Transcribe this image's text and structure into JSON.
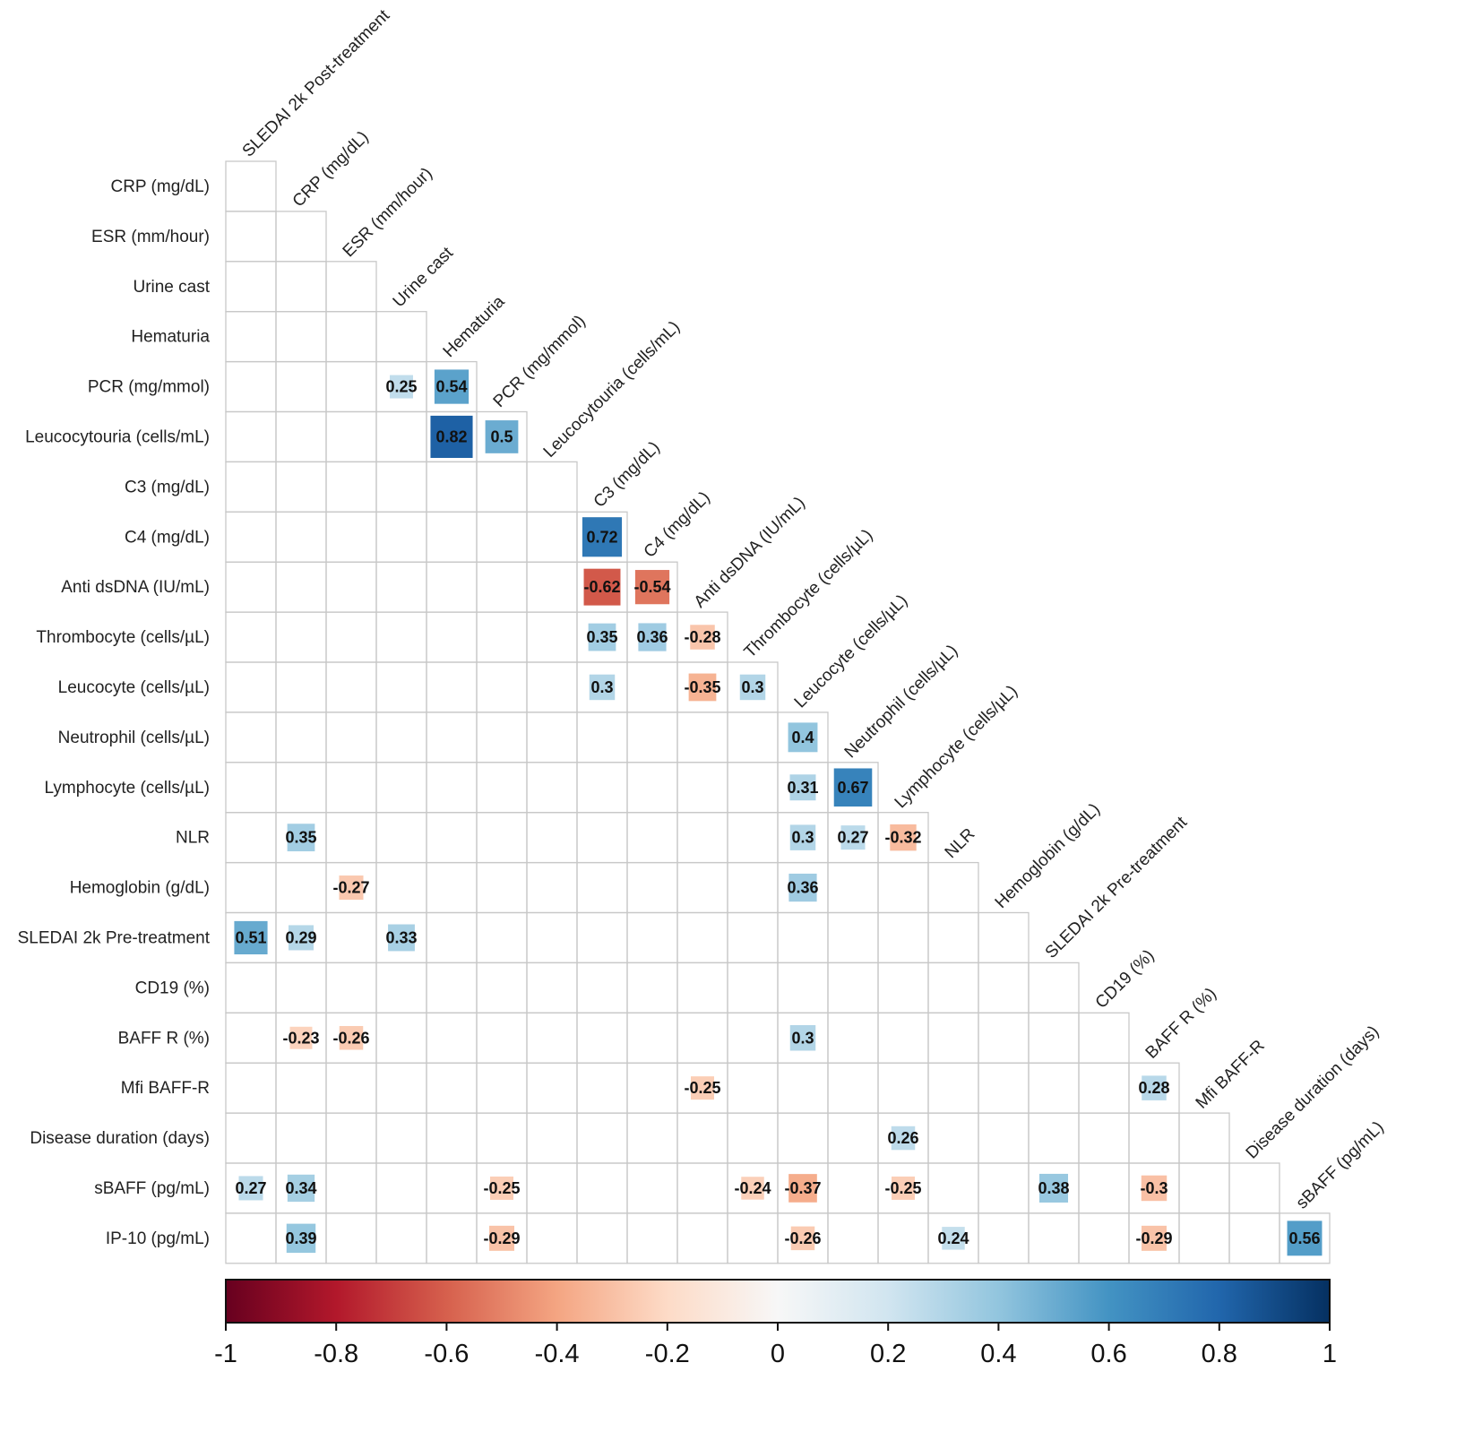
{
  "chart_data": {
    "type": "heatmap",
    "title": "",
    "xlabel": "",
    "ylabel": "",
    "columns": [
      "SLEDAI 2k Post-treatment",
      "CRP (mg/dL)",
      "ESR (mm/hour)",
      "Urine cast",
      "Hematuria",
      "PCR (mg/mmol)",
      "Leucocytouria (cells/mL)",
      "C3  (mg/dL)",
      "C4 (mg/dL)",
      "Anti dsDNA (IU/mL)",
      "Thrombocyte (cells/µL)",
      "Leucocyte (cells/µL)",
      "Neutrophil (cells/µL)",
      "Lymphocyte (cells/µL)",
      "NLR",
      "Hemoglobin (g/dL)",
      "SLEDAI 2k Pre-treatment",
      "CD19 (%)",
      "BAFF R (%)",
      "Mfi BAFF-R",
      "Disease duration (days)",
      "sBAFF (pg/mL)"
    ],
    "rows": [
      "CRP (mg/dL)",
      "ESR (mm/hour)",
      "Urine cast",
      "Hematuria",
      "PCR (mg/mmol)",
      "Leucocytouria (cells/mL)",
      "C3  (mg/dL)",
      "C4 (mg/dL)",
      "Anti dsDNA (IU/mL)",
      "Thrombocyte (cells/µL)",
      "Leucocyte (cells/µL)",
      "Neutrophil (cells/µL)",
      "Lymphocyte (cells/µL)",
      "NLR",
      "Hemoglobin (g/dL)",
      "SLEDAI 2k Pre-treatment",
      "CD19 (%)",
      "BAFF R (%)",
      "Mfi BAFF-R",
      "Disease duration (days)",
      "sBAFF (pg/mL)",
      "IP-10 (pg/mL)"
    ],
    "cells": [
      {
        "row": 4,
        "col": 3,
        "value": 0.25,
        "label": "0.25"
      },
      {
        "row": 4,
        "col": 4,
        "value": 0.54,
        "label": "0.54"
      },
      {
        "row": 5,
        "col": 4,
        "value": 0.82,
        "label": "0.82"
      },
      {
        "row": 5,
        "col": 5,
        "value": 0.5,
        "label": "0.5"
      },
      {
        "row": 7,
        "col": 7,
        "value": 0.72,
        "label": "0.72"
      },
      {
        "row": 8,
        "col": 7,
        "value": -0.62,
        "label": "-0.62"
      },
      {
        "row": 8,
        "col": 8,
        "value": -0.54,
        "label": "-0.54"
      },
      {
        "row": 9,
        "col": 7,
        "value": 0.35,
        "label": "0.35"
      },
      {
        "row": 9,
        "col": 8,
        "value": 0.36,
        "label": "0.36"
      },
      {
        "row": 9,
        "col": 9,
        "value": -0.28,
        "label": "-0.28"
      },
      {
        "row": 10,
        "col": 7,
        "value": 0.3,
        "label": "0.3"
      },
      {
        "row": 10,
        "col": 9,
        "value": -0.35,
        "label": "-0.35"
      },
      {
        "row": 10,
        "col": 10,
        "value": 0.3,
        "label": "0.3"
      },
      {
        "row": 11,
        "col": 11,
        "value": 0.4,
        "label": "0.4"
      },
      {
        "row": 12,
        "col": 11,
        "value": 0.31,
        "label": "0.31"
      },
      {
        "row": 12,
        "col": 12,
        "value": 0.67,
        "label": "0.67"
      },
      {
        "row": 13,
        "col": 1,
        "value": 0.35,
        "label": "0.35"
      },
      {
        "row": 13,
        "col": 11,
        "value": 0.3,
        "label": "0.3"
      },
      {
        "row": 13,
        "col": 12,
        "value": 0.27,
        "label": "0.27"
      },
      {
        "row": 13,
        "col": 13,
        "value": -0.32,
        "label": "-0.32"
      },
      {
        "row": 14,
        "col": 2,
        "value": -0.27,
        "label": "-0.27"
      },
      {
        "row": 14,
        "col": 11,
        "value": 0.36,
        "label": "0.36"
      },
      {
        "row": 15,
        "col": 0,
        "value": 0.51,
        "label": "0.51"
      },
      {
        "row": 15,
        "col": 1,
        "value": 0.29,
        "label": "0.29"
      },
      {
        "row": 15,
        "col": 3,
        "value": 0.33,
        "label": "0.33"
      },
      {
        "row": 17,
        "col": 1,
        "value": -0.23,
        "label": "-0.23"
      },
      {
        "row": 17,
        "col": 2,
        "value": -0.26,
        "label": "-0.26"
      },
      {
        "row": 17,
        "col": 11,
        "value": 0.3,
        "label": "0.3"
      },
      {
        "row": 18,
        "col": 9,
        "value": -0.25,
        "label": "-0.25"
      },
      {
        "row": 18,
        "col": 18,
        "value": 0.28,
        "label": "0.28"
      },
      {
        "row": 19,
        "col": 13,
        "value": 0.26,
        "label": "0.26"
      },
      {
        "row": 20,
        "col": 0,
        "value": 0.27,
        "label": "0.27"
      },
      {
        "row": 20,
        "col": 1,
        "value": 0.34,
        "label": "0.34"
      },
      {
        "row": 20,
        "col": 5,
        "value": -0.25,
        "label": "-0.25"
      },
      {
        "row": 20,
        "col": 10,
        "value": -0.24,
        "label": "-0.24"
      },
      {
        "row": 20,
        "col": 11,
        "value": -0.37,
        "label": "-0.37"
      },
      {
        "row": 20,
        "col": 13,
        "value": -0.25,
        "label": "-0.25"
      },
      {
        "row": 20,
        "col": 16,
        "value": 0.38,
        "label": "0.38"
      },
      {
        "row": 20,
        "col": 18,
        "value": -0.3,
        "label": "-0.3"
      },
      {
        "row": 21,
        "col": 1,
        "value": 0.39,
        "label": "0.39"
      },
      {
        "row": 21,
        "col": 5,
        "value": -0.29,
        "label": "-0.29"
      },
      {
        "row": 21,
        "col": 11,
        "value": -0.26,
        "label": "-0.26"
      },
      {
        "row": 21,
        "col": 14,
        "value": 0.24,
        "label": "0.24"
      },
      {
        "row": 21,
        "col": 18,
        "value": -0.29,
        "label": "-0.29"
      },
      {
        "row": 21,
        "col": 21,
        "value": 0.56,
        "label": "0.56"
      }
    ],
    "colorbar": {
      "range": [
        -1,
        1
      ],
      "ticks": [
        "-1",
        "-0.8",
        "-0.6",
        "-0.4",
        "-0.2",
        "0",
        "0.2",
        "0.4",
        "0.6",
        "0.8",
        "1"
      ],
      "colors": [
        "#67001f",
        "#b2182b",
        "#d6604d",
        "#f4a582",
        "#fddbc7",
        "#f7f7f7",
        "#d1e5f0",
        "#92c5de",
        "#4393c3",
        "#2166ac",
        "#053061"
      ],
      "placement": "bottom"
    },
    "grid": true,
    "shape": "lower-triangular"
  }
}
